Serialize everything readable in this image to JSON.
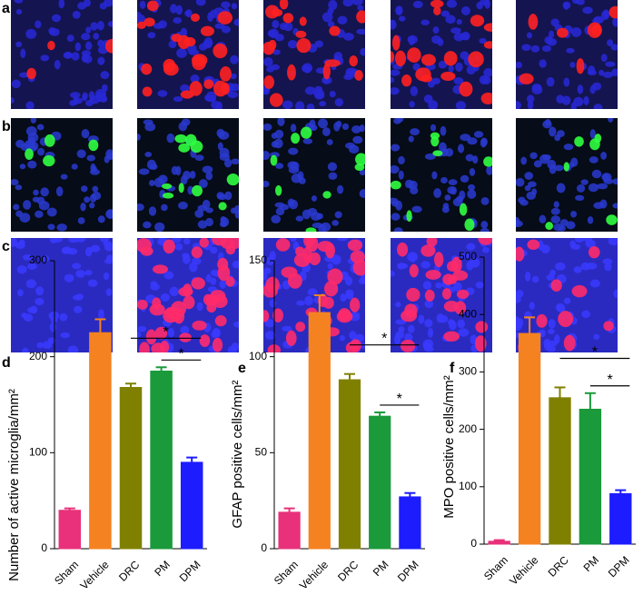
{
  "panel_labels": [
    "a",
    "b",
    "c"
  ],
  "chart_data": [
    {
      "type": "bar",
      "panel": "d",
      "y_label": "Number of active microglia/mm²",
      "categories": [
        "Sham",
        "Vehicle",
        "DRC",
        "PM",
        "DPM"
      ],
      "values": [
        40,
        225,
        168,
        185,
        90
      ],
      "errors": [
        2,
        14,
        4,
        4,
        5
      ],
      "colors": [
        "#e8317a",
        "#f58220",
        "#808000",
        "#1a9a3a",
        "#1c1cff"
      ],
      "ylim": [
        0,
        300
      ],
      "yticks": [
        0,
        100,
        200,
        300
      ],
      "significance": [
        {
          "pair": [
            2,
            4
          ],
          "label": "*"
        },
        {
          "pair": [
            3,
            4
          ],
          "label": "*"
        }
      ]
    },
    {
      "type": "bar",
      "panel": "e",
      "y_label": "GFAP positive cells/mm²",
      "categories": [
        "Sham",
        "Vehicle",
        "DRC",
        "PM",
        "DPM"
      ],
      "values": [
        19,
        123,
        88,
        69,
        27
      ],
      "errors": [
        2,
        9,
        3,
        2,
        2
      ],
      "colors": [
        "#e8317a",
        "#f58220",
        "#808000",
        "#1a9a3a",
        "#1c1cff"
      ],
      "ylim": [
        0,
        150
      ],
      "yticks": [
        0,
        50,
        100,
        150
      ],
      "significance": [
        {
          "pair": [
            2,
            4
          ],
          "label": "*"
        },
        {
          "pair": [
            3,
            4
          ],
          "label": "*"
        }
      ]
    },
    {
      "type": "bar",
      "panel": "f",
      "y_label": "MPO positive cells/mm²",
      "categories": [
        "Sham",
        "Vehicle",
        "DRC",
        "PM",
        "DPM"
      ],
      "values": [
        5,
        367,
        255,
        235,
        88
      ],
      "errors": [
        2,
        28,
        18,
        28,
        6
      ],
      "colors": [
        "#e8317a",
        "#f58220",
        "#808000",
        "#1a9a3a",
        "#1c1cff"
      ],
      "ylim": [
        0,
        500
      ],
      "yticks": [
        0,
        100,
        200,
        300,
        400,
        500
      ],
      "significance": [
        {
          "pair": [
            2,
            4
          ],
          "label": "*"
        },
        {
          "pair": [
            3,
            4
          ],
          "label": "*"
        }
      ]
    }
  ]
}
